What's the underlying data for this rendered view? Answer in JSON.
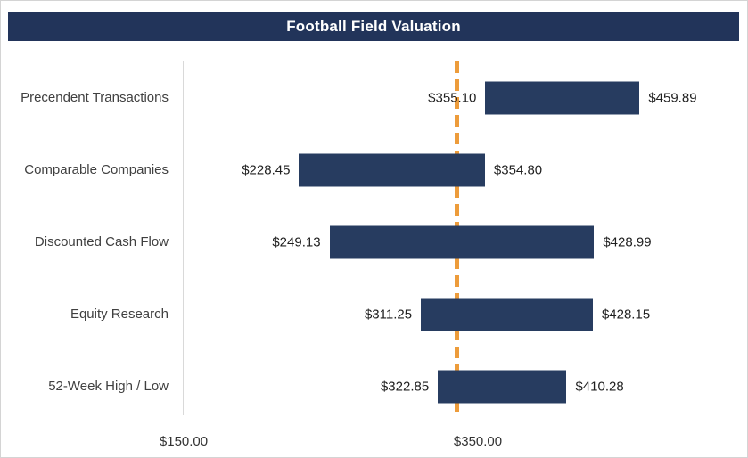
{
  "title": "Football Field Valuation",
  "colors": {
    "title_bg": "#22345A",
    "title_text": "#FFFFFF",
    "bar": "#273C60",
    "marker": "#ED9C3B",
    "axis_line": "#D9D9D9",
    "category_text": "#404040",
    "value_text": "#1F1F1F"
  },
  "chart_data": {
    "type": "bar",
    "subtype": "horizontal-range-football-field",
    "title": "Football Field Valuation",
    "categories": [
      "Precendent Transactions",
      "Comparable Companies",
      "Discounted Cash Flow",
      "Equity Research",
      "52-Week High / Low"
    ],
    "ranges": [
      {
        "category": "Precendent Transactions",
        "low": 355.1,
        "high": 459.89,
        "low_label": "$355.10",
        "high_label": "$459.89"
      },
      {
        "category": "Comparable Companies",
        "low": 228.45,
        "high": 354.8,
        "low_label": "$228.45",
        "high_label": "$354.80"
      },
      {
        "category": "Discounted Cash Flow",
        "low": 249.13,
        "high": 428.99,
        "low_label": "$249.13",
        "high_label": "$428.99"
      },
      {
        "category": "Equity Research",
        "low": 311.25,
        "high": 428.15,
        "low_label": "$311.25",
        "high_label": "$428.15"
      },
      {
        "category": "52-Week High / Low",
        "low": 322.85,
        "high": 410.28,
        "low_label": "$322.85",
        "high_label": "$410.28"
      }
    ],
    "x_axis": {
      "min_visible_tick": 150,
      "ticks": [
        {
          "value": 150,
          "label": "$150.00"
        },
        {
          "value": 350,
          "label": "$350.00"
        }
      ]
    },
    "marker_line": {
      "value_estimate": 336,
      "style": "dashed",
      "color": "#ED9C3B",
      "orientation": "vertical"
    },
    "legend": "none",
    "grid": "single vertical axis line at $150"
  }
}
